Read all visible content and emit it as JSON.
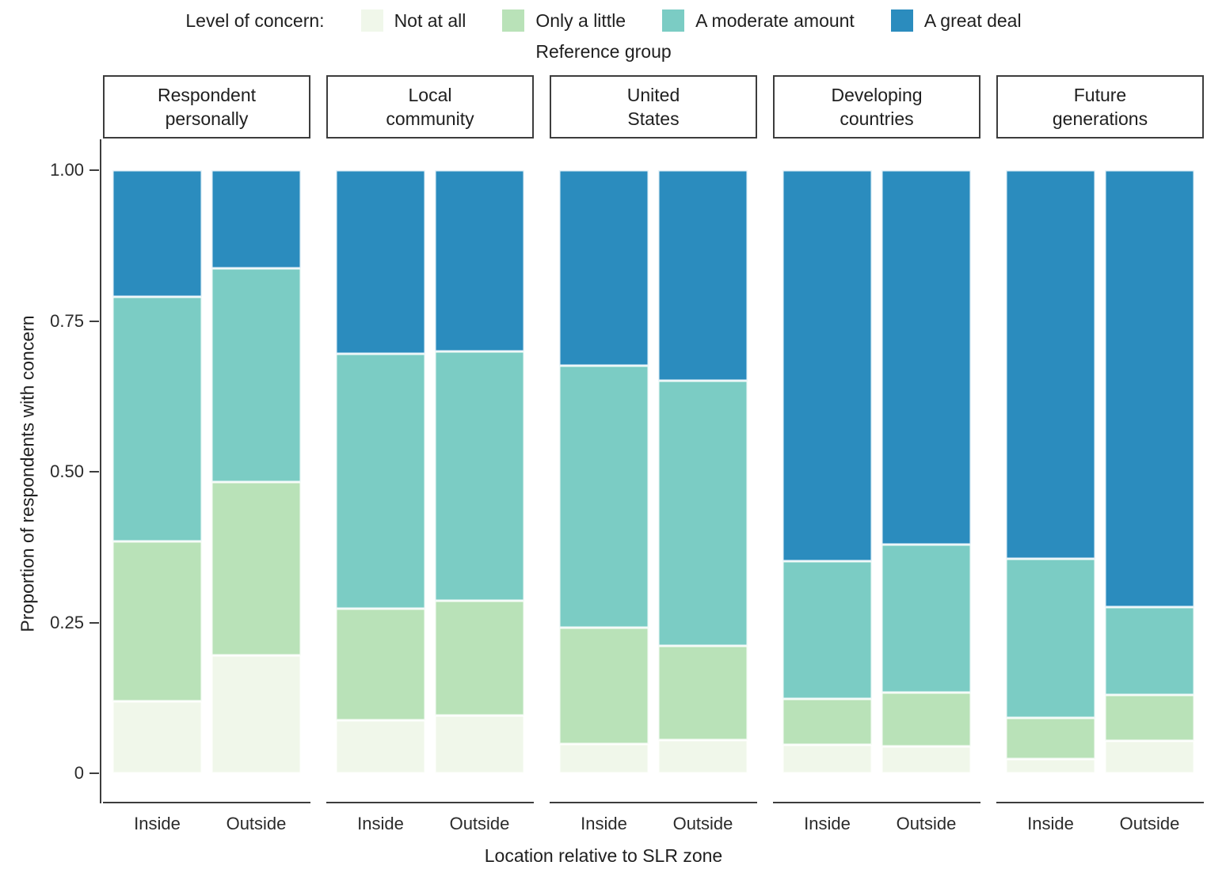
{
  "chart_data": {
    "type": "bar",
    "subtype": "stacked-proportion",
    "legend_title": "Level of concern:",
    "legend_position": "top",
    "facet_axis_title": "Reference group",
    "xlabel": "Location relative to SLR zone",
    "ylabel": "Proportion of respondents with concern",
    "ylim": [
      0,
      1
    ],
    "grid": "off",
    "y_ticks": [
      {
        "label": "0",
        "value": 0
      },
      {
        "label": "0.25",
        "value": 0.25
      },
      {
        "label": "0.50",
        "value": 0.5
      },
      {
        "label": "0.75",
        "value": 0.75
      },
      {
        "label": "1.00",
        "value": 1.0
      }
    ],
    "series": [
      {
        "name": "Not at all",
        "color": "#f0f7ea"
      },
      {
        "name": "Only a little",
        "color": "#b9e2b8"
      },
      {
        "name": "A moderate amount",
        "color": "#7bccc4"
      },
      {
        "name": "A great deal",
        "color": "#2b8cbe"
      }
    ],
    "categories": [
      "Inside",
      "Outside"
    ],
    "facets": [
      {
        "label_lines": [
          "Respondent",
          "personally"
        ],
        "bars": [
          {
            "location": "Inside",
            "values": [
              0.12,
              0.265,
              0.405,
              0.21
            ]
          },
          {
            "location": "Outside",
            "values": [
              0.195,
              0.288,
              0.354,
              0.163
            ]
          }
        ]
      },
      {
        "label_lines": [
          "Local",
          "community"
        ],
        "bars": [
          {
            "location": "Inside",
            "values": [
              0.088,
              0.185,
              0.422,
              0.305
            ]
          },
          {
            "location": "Outside",
            "values": [
              0.096,
              0.19,
              0.414,
              0.3
            ]
          }
        ]
      },
      {
        "label_lines": [
          "United",
          "States"
        ],
        "bars": [
          {
            "location": "Inside",
            "values": [
              0.049,
              0.193,
              0.434,
              0.324
            ]
          },
          {
            "location": "Outside",
            "values": [
              0.055,
              0.156,
              0.44,
              0.349
            ]
          }
        ]
      },
      {
        "label_lines": [
          "Developing",
          "countries"
        ],
        "bars": [
          {
            "location": "Inside",
            "values": [
              0.047,
              0.076,
              0.229,
              0.648
            ]
          },
          {
            "location": "Outside",
            "values": [
              0.044,
              0.09,
              0.245,
              0.621
            ]
          }
        ]
      },
      {
        "label_lines": [
          "Future",
          "generations"
        ],
        "bars": [
          {
            "location": "Inside",
            "values": [
              0.024,
              0.068,
              0.264,
              0.644
            ]
          },
          {
            "location": "Outside",
            "values": [
              0.054,
              0.076,
              0.146,
              0.724
            ]
          }
        ]
      }
    ]
  },
  "layout_text": {
    "legend_title": "Level of concern:",
    "facet_axis_title": "Reference group",
    "x_axis_title": "Location relative to SLR zone",
    "y_axis_title": "Proportion of respondents with concern"
  }
}
